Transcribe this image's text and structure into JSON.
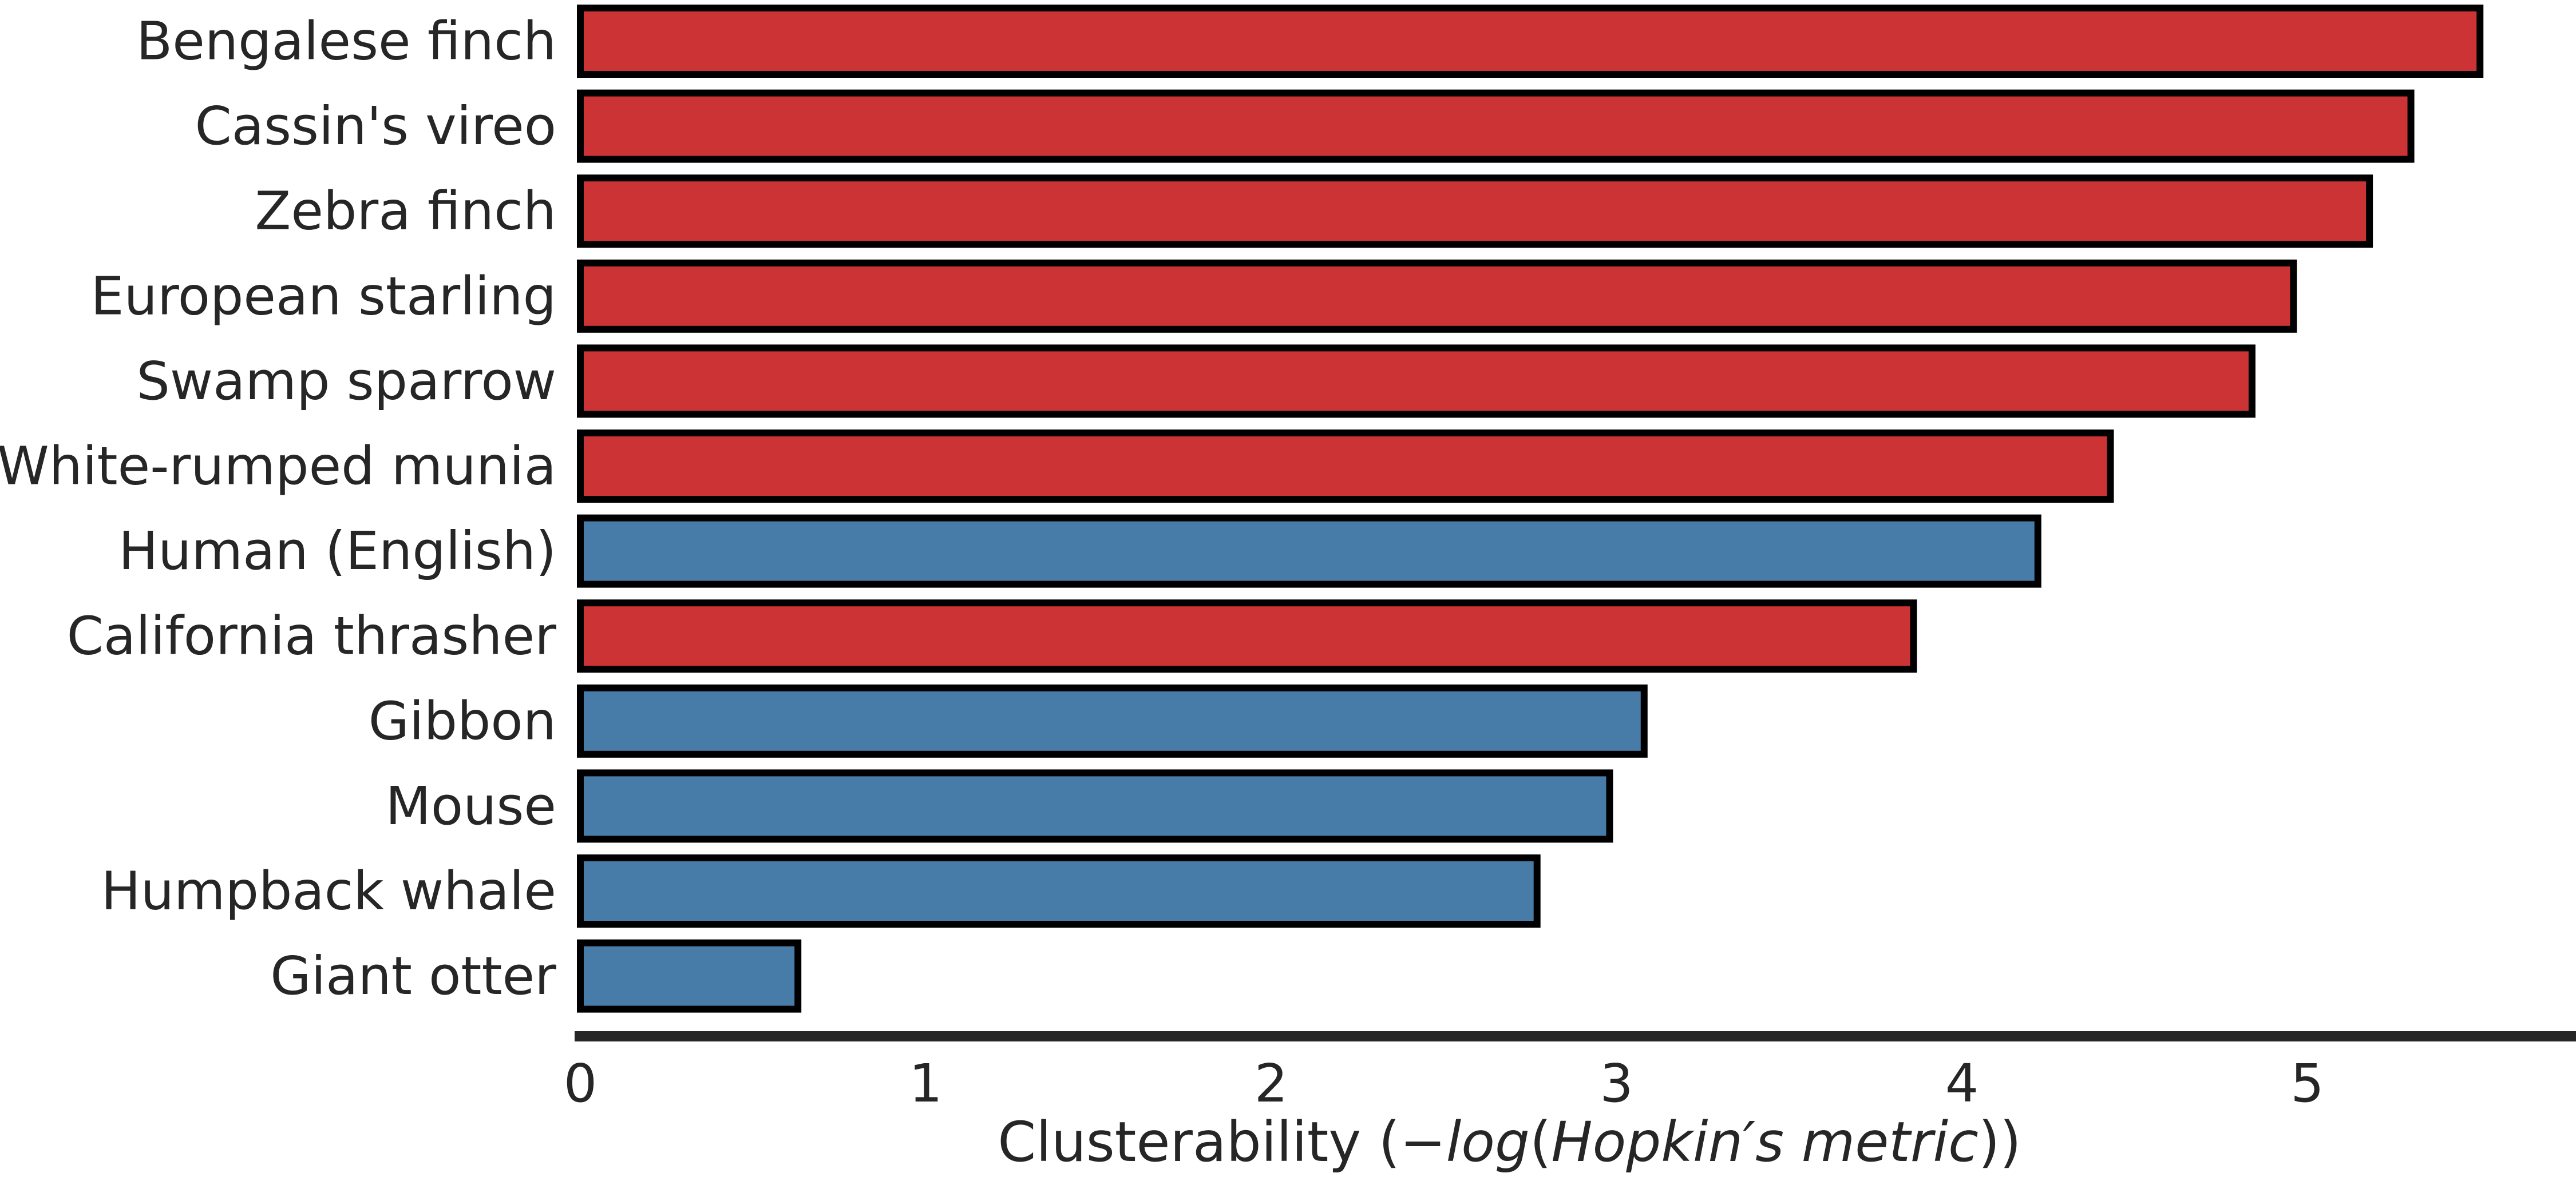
{
  "chart_data": {
    "type": "bar",
    "orientation": "horizontal",
    "title": "",
    "categories": [
      "Bengalese finch",
      "Cassin's vireo",
      "Zebra finch",
      "European starling",
      "Swamp sparrow",
      "White-rumped munia",
      "Human (English)",
      "California thrasher",
      "Gibbon",
      "Mouse",
      "Humpback whale",
      "Giant otter"
    ],
    "values": [
      5.5,
      5.3,
      5.18,
      4.96,
      4.84,
      4.43,
      4.22,
      3.86,
      3.08,
      2.98,
      2.77,
      0.63
    ],
    "groups": [
      "bird",
      "bird",
      "bird",
      "bird",
      "bird",
      "bird",
      "other",
      "bird",
      "other",
      "other",
      "other",
      "other"
    ],
    "group_colors": {
      "bird": "#cb3335",
      "other": "#477ca8"
    },
    "bar_edge_color": "#000000",
    "axis_color": "#262626",
    "xlabel_parts": [
      {
        "text": "Clusterability (−",
        "style": "normal"
      },
      {
        "text": "log",
        "style": "italic"
      },
      {
        "text": "(",
        "style": "normal"
      },
      {
        "text": "Hopkin′s metric",
        "style": "italic"
      },
      {
        "text": "))",
        "style": "normal"
      }
    ],
    "ylabel": "",
    "xlim": [
      0,
      5.77
    ],
    "xticks": [
      0,
      1,
      2,
      3,
      4,
      5
    ],
    "xtick_labels": [
      "0",
      "1",
      "2",
      "3",
      "4",
      "5"
    ],
    "grid": false,
    "legend": "none"
  }
}
